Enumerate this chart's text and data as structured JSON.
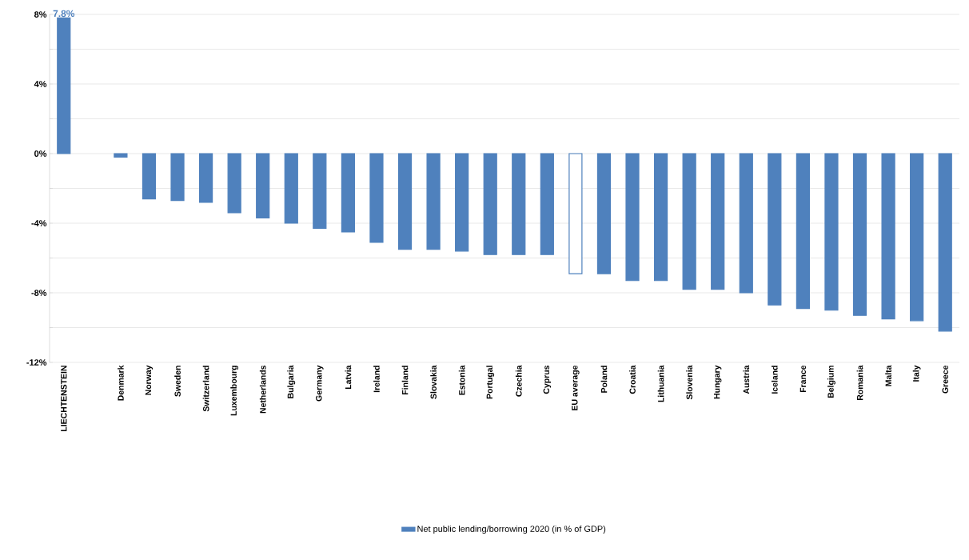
{
  "chart_data": {
    "type": "bar",
    "categories": [
      "LIECHTENSTEIN",
      null,
      "Denmark",
      "Norway",
      "Sweden",
      "Switzerland",
      "Luxembourg",
      "Netherlands",
      "Bulgaria",
      "Germany",
      "Latvia",
      "Ireland",
      "Finland",
      "Slovakia",
      "Estonia",
      "Portugal",
      "Czechia",
      "Cyprus",
      "EU average",
      "Poland",
      "Croatia",
      "Lithuania",
      "Slovenia",
      "Hungary",
      "Austria",
      "Iceland",
      "France",
      "Belgium",
      "Romania",
      "Malta",
      "Italy",
      "Greece"
    ],
    "series": [
      {
        "name": "Net public lending/borrowing 2020 (in % of GDP)",
        "color": "#4f81bd",
        "colors": [
          "#4f81bd",
          "#4f81bd",
          "#4f81bd",
          "#4f81bd",
          "#4f81bd",
          "#4f81bd",
          "#4f81bd",
          "#4f81bd",
          "#4f81bd",
          "#4f81bd",
          "#4f81bd",
          "#4f81bd",
          "#4f81bd",
          "#4f81bd",
          "#4f81bd",
          "#4f81bd",
          "#4f81bd",
          "#4f81bd",
          "#ffffff",
          "#4f81bd",
          "#4f81bd",
          "#4f81bd",
          "#4f81bd",
          "#4f81bd",
          "#4f81bd",
          "#4f81bd",
          "#4f81bd",
          "#4f81bd",
          "#4f81bd",
          "#4f81bd",
          "#4f81bd",
          "#4f81bd"
        ],
        "values": [
          7.8,
          null,
          -0.2,
          -2.6,
          -2.7,
          -2.8,
          -3.4,
          -3.7,
          -4.0,
          -4.3,
          -4.5,
          -5.1,
          -5.5,
          -5.5,
          -5.6,
          -5.8,
          -5.8,
          -5.8,
          -6.9,
          -6.9,
          -7.3,
          -7.3,
          -7.8,
          -7.8,
          -8.0,
          -8.7,
          -8.9,
          -9.0,
          -9.3,
          -9.5,
          -9.6,
          -10.2
        ],
        "value_labels": [
          "7.8%",
          null,
          null,
          null,
          null,
          null,
          null,
          null,
          null,
          null,
          null,
          null,
          null,
          null,
          null,
          null,
          null,
          null,
          null,
          null,
          null,
          null,
          null,
          null,
          null,
          null,
          null,
          null,
          null,
          null,
          null,
          null
        ]
      }
    ],
    "ylim": [
      -12,
      8
    ],
    "yticks": [
      {
        "value": -12,
        "label": "-12%"
      },
      {
        "value": -10,
        "label": null
      },
      {
        "value": -8,
        "label": "-8%"
      },
      {
        "value": -6,
        "label": null
      },
      {
        "value": -4,
        "label": "-4%"
      },
      {
        "value": -2,
        "label": null
      },
      {
        "value": 0,
        "label": "0%"
      },
      {
        "value": 2,
        "label": null
      },
      {
        "value": 4,
        "label": "4%"
      },
      {
        "value": 6,
        "label": null
      },
      {
        "value": 8,
        "label": "8%"
      }
    ],
    "grid": "y",
    "legend": "bottom"
  }
}
